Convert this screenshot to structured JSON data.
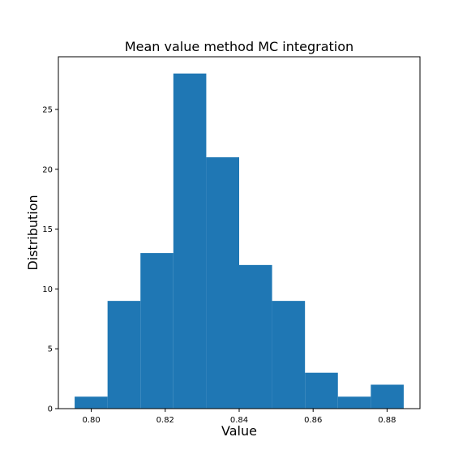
{
  "chart_data": {
    "type": "bar",
    "title": "Mean value method MC integration",
    "xlabel": "Value",
    "ylabel": "Distribution",
    "bin_edges": [
      0.7955,
      0.8044,
      0.8133,
      0.8222,
      0.8311,
      0.84,
      0.8489,
      0.8578,
      0.8667,
      0.8756,
      0.8845
    ],
    "values": [
      1,
      9,
      13,
      28,
      21,
      12,
      9,
      3,
      1,
      2
    ],
    "xlim": [
      0.7911,
      0.8889
    ],
    "ylim": [
      0,
      29.4
    ],
    "x_ticks": [
      0.8,
      0.82,
      0.84,
      0.86,
      0.88
    ],
    "x_tick_labels": [
      "0.80",
      "0.82",
      "0.84",
      "0.86",
      "0.88"
    ],
    "y_ticks": [
      0,
      5,
      10,
      15,
      20,
      25
    ],
    "y_tick_labels": [
      "0",
      "5",
      "10",
      "15",
      "20",
      "25"
    ],
    "bar_color": "#1f77b4",
    "grid": false
  }
}
